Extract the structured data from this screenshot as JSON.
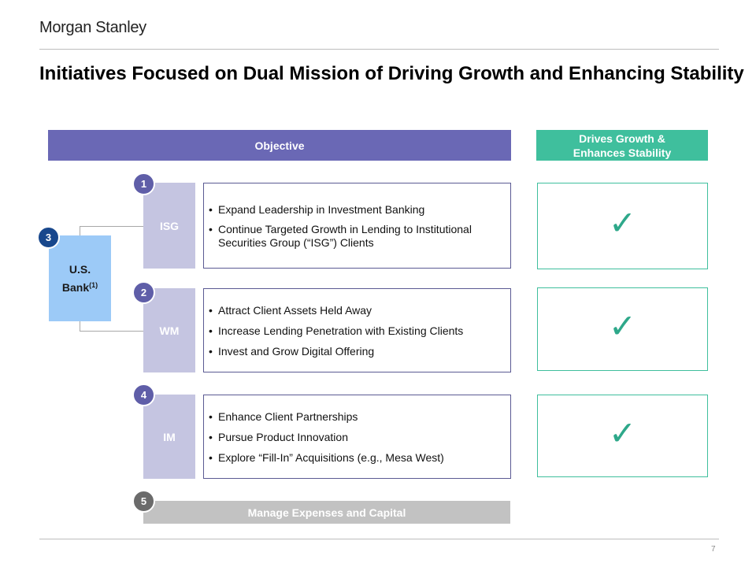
{
  "logo": "Morgan Stanley",
  "title": "Initiatives Focused on Dual Mission of Driving Growth and Enhancing Stability",
  "headers": {
    "objective": "Objective",
    "drives_line1": "Drives Growth &",
    "drives_line2": "Enhances Stability"
  },
  "segments": [
    {
      "number": "1",
      "name": "ISG",
      "bullets": [
        "Expand Leadership in Investment Banking",
        "Continue Targeted Growth in Lending to Institutional Securities Group (“ISG”) Clients"
      ],
      "check": "✓"
    },
    {
      "number": "2",
      "name": "WM",
      "bullets": [
        "Attract Client Assets Held Away",
        "Increase Lending Penetration with Existing Clients",
        "Invest and Grow Digital Offering"
      ],
      "check": "✓"
    },
    {
      "number": "4",
      "name": "IM",
      "bullets": [
        "Enhance Client Partnerships",
        "Pursue Product Innovation",
        "Explore “Fill-In” Acquisitions (e.g., Mesa West)"
      ],
      "check": "✓"
    }
  ],
  "us_bank": {
    "number": "3",
    "line1": "U.S.",
    "line2": "Bank",
    "footnote": "(1)"
  },
  "expenses": {
    "number": "5",
    "label": "Manage Expenses and Capital"
  },
  "page_number": "7",
  "colors": {
    "objective_header": "#6a68b5",
    "drives_header": "#3fbf9d",
    "segment_block": "#c5c5e1",
    "us_bank": "#9ccaf7",
    "check": "#2ea88a",
    "badge_purple": "#5f5ea8",
    "badge_navy": "#18478c",
    "badge_gray": "#6b6b6b"
  }
}
